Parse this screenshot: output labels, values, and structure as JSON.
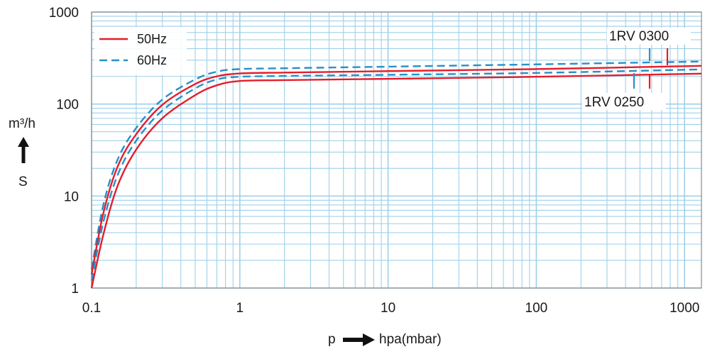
{
  "chart_data": {
    "type": "line",
    "x_scale": "log",
    "y_scale": "log",
    "xlim": [
      0.1,
      1300
    ],
    "ylim": [
      1,
      1000
    ],
    "x_ticks": [
      0.1,
      1,
      10,
      100,
      1000
    ],
    "x_tick_labels": [
      "0.1",
      "1",
      "10",
      "100",
      "1000"
    ],
    "y_ticks": [
      1,
      10,
      100,
      1000
    ],
    "y_tick_labels": [
      "1",
      "10",
      "100",
      "1000"
    ],
    "xlabel": {
      "prefix": "p",
      "unit": "hpa(mbar)"
    },
    "ylabel": {
      "unit": "m³/h",
      "symbol": "S"
    },
    "grid": true,
    "legend": {
      "position": "top-left",
      "entries": [
        {
          "label": "50Hz",
          "color": "#e41e2b",
          "style": "solid"
        },
        {
          "label": "60Hz",
          "color": "#2a8fc7",
          "style": "dashed"
        }
      ]
    },
    "annotations": [
      {
        "text": "1RV 0300"
      },
      {
        "text": "1RV 0250"
      }
    ],
    "series": [
      {
        "model": "1RV 0300",
        "freq": "60Hz",
        "color": "#2a8fc7",
        "style": "dashed",
        "x": [
          0.1,
          0.12,
          0.15,
          0.2,
          0.3,
          0.5,
          0.7,
          1,
          2,
          10,
          100,
          1300
        ],
        "y": [
          1.6,
          8,
          25,
          55,
          112,
          185,
          225,
          240,
          245,
          255,
          270,
          290
        ]
      },
      {
        "model": "1RV 0300",
        "freq": "50Hz",
        "color": "#e41e2b",
        "style": "solid",
        "x": [
          0.1,
          0.12,
          0.15,
          0.2,
          0.3,
          0.5,
          0.7,
          1,
          2,
          10,
          100,
          1300
        ],
        "y": [
          1.4,
          6.5,
          21,
          47,
          98,
          165,
          200,
          215,
          220,
          228,
          240,
          260
        ]
      },
      {
        "model": "1RV 0250",
        "freq": "60Hz",
        "color": "#2a8fc7",
        "style": "dashed",
        "x": [
          0.1,
          0.12,
          0.15,
          0.2,
          0.3,
          0.5,
          0.7,
          1,
          2,
          10,
          100,
          1300
        ],
        "y": [
          1.2,
          5.2,
          17,
          40,
          85,
          148,
          185,
          198,
          202,
          208,
          218,
          238
        ]
      },
      {
        "model": "1RV 0250",
        "freq": "50Hz",
        "color": "#e41e2b",
        "style": "solid",
        "x": [
          0.1,
          0.12,
          0.15,
          0.2,
          0.3,
          0.5,
          0.7,
          1,
          2,
          10,
          100,
          1300
        ],
        "y": [
          1.0,
          3.8,
          13,
          32,
          70,
          125,
          160,
          178,
          182,
          188,
          198,
          214
        ]
      }
    ]
  }
}
